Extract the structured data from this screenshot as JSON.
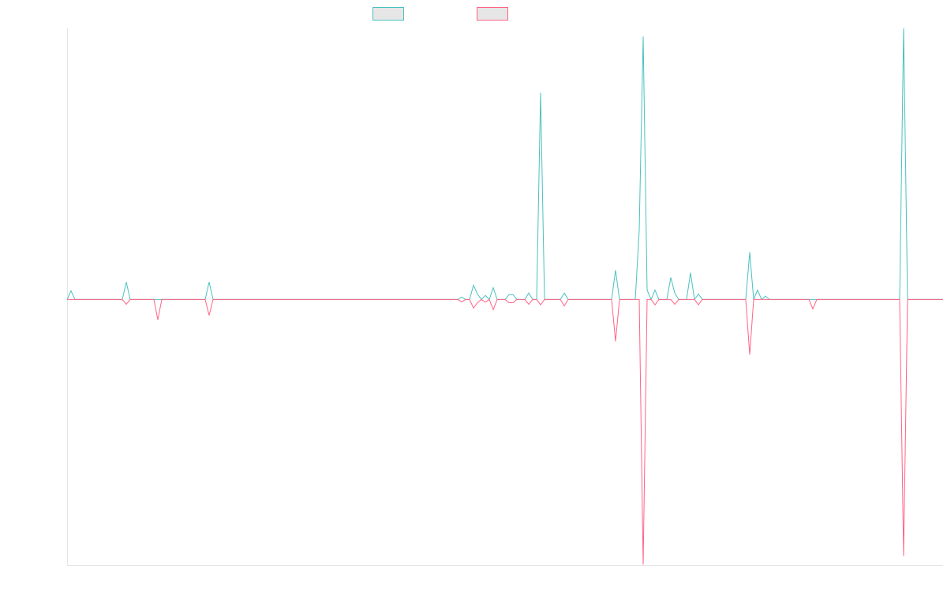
{
  "chart_data": {
    "type": "line",
    "x": [
      0,
      1,
      2,
      14,
      15,
      16,
      22,
      23,
      24,
      35,
      36,
      37,
      99,
      100,
      101,
      102,
      103,
      104,
      105,
      106,
      107,
      108,
      109,
      111,
      112,
      113,
      114,
      116,
      117,
      118,
      119,
      120,
      121,
      125,
      126,
      127,
      138,
      139,
      140,
      144,
      145,
      146,
      147,
      148,
      149,
      150,
      152,
      153,
      154,
      155,
      157,
      158,
      159,
      160,
      161,
      172,
      173,
      174,
      175,
      176,
      177,
      178,
      188,
      189,
      190,
      211,
      212,
      213,
      222
    ],
    "series": [
      {
        "color": "#4bc0c0",
        "values": [
          0,
          3.2,
          0,
          0,
          6.5,
          0,
          0,
          0,
          0,
          0,
          6.5,
          0,
          0,
          0.9,
          0,
          0,
          5.3,
          2,
          0,
          1.5,
          0,
          4.4,
          0,
          0,
          1.8,
          1.8,
          0,
          0,
          2.4,
          0,
          0,
          77,
          0,
          0,
          2.4,
          0,
          0,
          10.9,
          0,
          0,
          25.9,
          98,
          3.5,
          0,
          3.5,
          0,
          0,
          8.2,
          2.4,
          0,
          0,
          10,
          0,
          2,
          0,
          0,
          17.6,
          0,
          3.5,
          0,
          1.2,
          0,
          0,
          0,
          0,
          0,
          101,
          0,
          0
        ]
      },
      {
        "color": "#ff6384",
        "values": [
          0,
          0,
          0,
          0,
          -1.8,
          0,
          0,
          -7.6,
          0,
          0,
          -5.9,
          0,
          0,
          -0.9,
          0,
          0,
          -3.2,
          -1.2,
          0,
          -1,
          0,
          -3.8,
          0,
          0,
          -1.2,
          -1.2,
          0,
          0,
          -1.8,
          0,
          0,
          -2,
          0,
          0,
          -2.4,
          0,
          0,
          -15.6,
          0,
          0,
          0,
          -98.8,
          0,
          0,
          -2,
          0,
          0,
          0,
          -1.8,
          0,
          0,
          0,
          0,
          -2,
          0,
          0,
          -20.6,
          0,
          0,
          0,
          0,
          0,
          0,
          -3.5,
          0,
          0,
          -95.6,
          0,
          0
        ]
      }
    ],
    "xlim": [
      0,
      222
    ],
    "ylim": [
      -99,
      101
    ]
  }
}
